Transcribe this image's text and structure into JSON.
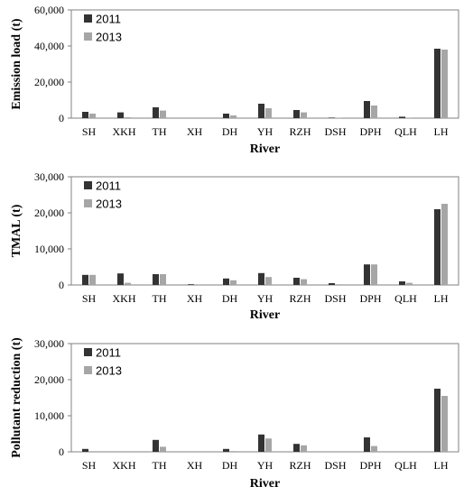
{
  "colors": {
    "s2011": "#333333",
    "s2013": "#a6a6a6"
  },
  "chart_data": [
    {
      "type": "bar",
      "xlabel": "River",
      "ylabel": "Emission load (t)",
      "categories": [
        "SH",
        "XKH",
        "TH",
        "XH",
        "DH",
        "YH",
        "RZH",
        "DSH",
        "DPH",
        "QLH",
        "LH"
      ],
      "ylim": [
        0,
        60000
      ],
      "yticks": [
        "0",
        "20,000",
        "40,000",
        "60,000"
      ],
      "legend": "top-left",
      "series": [
        {
          "name": "2011",
          "values": [
            3500,
            3200,
            6000,
            0,
            2500,
            8000,
            4500,
            300,
            9500,
            800,
            38500
          ]
        },
        {
          "name": "2013",
          "values": [
            2500,
            500,
            4200,
            0,
            1500,
            5500,
            3200,
            200,
            7000,
            300,
            38000
          ]
        }
      ]
    },
    {
      "type": "bar",
      "xlabel": "River",
      "ylabel": "TMAL (t)",
      "categories": [
        "SH",
        "XKH",
        "TH",
        "XH",
        "DH",
        "YH",
        "RZH",
        "DSH",
        "DPH",
        "QLH",
        "LH"
      ],
      "ylim": [
        0,
        30000
      ],
      "yticks": [
        "0",
        "10,000",
        "20,000",
        "30,000"
      ],
      "legend": "top-left",
      "series": [
        {
          "name": "2011",
          "values": [
            2800,
            3200,
            3000,
            200,
            1800,
            3300,
            2000,
            500,
            5700,
            1000,
            21000
          ]
        },
        {
          "name": "2013",
          "values": [
            2800,
            600,
            3000,
            0,
            1300,
            2200,
            1600,
            200,
            5700,
            600,
            22500
          ]
        }
      ]
    },
    {
      "type": "bar",
      "xlabel": "River",
      "ylabel": "Pollutant reduction  (t)",
      "categories": [
        "SH",
        "XKH",
        "TH",
        "XH",
        "DH",
        "YH",
        "RZH",
        "DSH",
        "DPH",
        "QLH",
        "LH"
      ],
      "ylim": [
        0,
        30000
      ],
      "yticks": [
        "0",
        "10,000",
        "20,000",
        "30,000"
      ],
      "legend": "top-left",
      "series": [
        {
          "name": "2011",
          "values": [
            800,
            0,
            3300,
            0,
            800,
            4800,
            2200,
            0,
            4000,
            0,
            17500
          ]
        },
        {
          "name": "2013",
          "values": [
            0,
            0,
            1400,
            0,
            200,
            3700,
            1800,
            0,
            1600,
            0,
            15500
          ]
        }
      ]
    }
  ]
}
